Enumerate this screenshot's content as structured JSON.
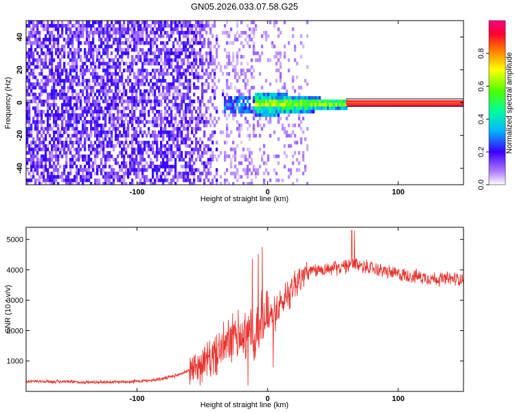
{
  "title": "GN05.2026.033.07.58.G25",
  "chart_data": [
    {
      "type": "heatmap",
      "name": "spectrogram",
      "xlabel": "Height of straight line (km)",
      "ylabel": "Frequency (Hz)",
      "xlim": [
        -185,
        150
      ],
      "ylim": [
        -50,
        50
      ],
      "xticks": [
        {
          "value": -100,
          "label": "-100"
        },
        {
          "value": 0,
          "label": "0"
        },
        {
          "value": 100,
          "label": "100"
        }
      ],
      "yticks": [
        {
          "value": -40,
          "label": "-40"
        },
        {
          "value": -20,
          "label": "-20"
        },
        {
          "value": 0,
          "label": "0"
        },
        {
          "value": 20,
          "label": "20"
        },
        {
          "value": 40,
          "label": "40"
        }
      ],
      "colorbar": {
        "label": "Normalized spectral amplitude",
        "range": [
          0,
          1
        ],
        "ticks": [
          {
            "value": 0.0,
            "label": "0.0"
          },
          {
            "value": 0.2,
            "label": "0.2"
          },
          {
            "value": 0.4,
            "label": "0.4"
          },
          {
            "value": 0.6,
            "label": "0.6"
          },
          {
            "value": 0.8,
            "label": "0.8"
          }
        ]
      },
      "description_regions": [
        {
          "x_start": -185,
          "x_end": -35,
          "frequency_spread": [
            -50,
            50
          ],
          "amplitude": 0.1
        },
        {
          "x_start": -35,
          "x_end": 60,
          "frequency_spread": [
            -8,
            8
          ],
          "amplitude": 0.35
        },
        {
          "x_start": 60,
          "x_end": 150,
          "frequency_spread": [
            -1,
            1
          ],
          "amplitude": 0.95
        }
      ]
    },
    {
      "type": "line",
      "name": "snr",
      "xlabel": "Height of straight line (km)",
      "ylabel": "SNR (10 * v/v)",
      "xlim": [
        -185,
        150
      ],
      "ylim": [
        0,
        5400
      ],
      "xticks": [
        {
          "value": -100,
          "label": "-100"
        },
        {
          "value": 0,
          "label": "0"
        },
        {
          "value": 100,
          "label": "100"
        }
      ],
      "yticks": [
        {
          "value": 1000,
          "label": "1000"
        },
        {
          "value": 2000,
          "label": "2000"
        },
        {
          "value": 3000,
          "label": "3000"
        },
        {
          "value": 4000,
          "label": "4000"
        },
        {
          "value": 5000,
          "label": "5000"
        }
      ],
      "series": [
        {
          "name": "SNR",
          "color": "#e8322c",
          "x": [
            -185,
            -160,
            -140,
            -120,
            -100,
            -90,
            -80,
            -70,
            -60,
            -50,
            -40,
            -30,
            -20,
            -15,
            -10,
            -5,
            0,
            5,
            10,
            15,
            20,
            25,
            30,
            40,
            50,
            60,
            65,
            70,
            80,
            90,
            100,
            110,
            120,
            130,
            140,
            150
          ],
          "y": [
            330,
            320,
            300,
            310,
            330,
            360,
            420,
            520,
            700,
            900,
            1200,
            1600,
            1900,
            2000,
            1800,
            2200,
            2500,
            2600,
            2800,
            3200,
            3500,
            3700,
            3900,
            4000,
            4050,
            4100,
            4200,
            4150,
            4050,
            3950,
            3850,
            3800,
            3750,
            3700,
            3700,
            3700
          ]
        }
      ]
    }
  ]
}
